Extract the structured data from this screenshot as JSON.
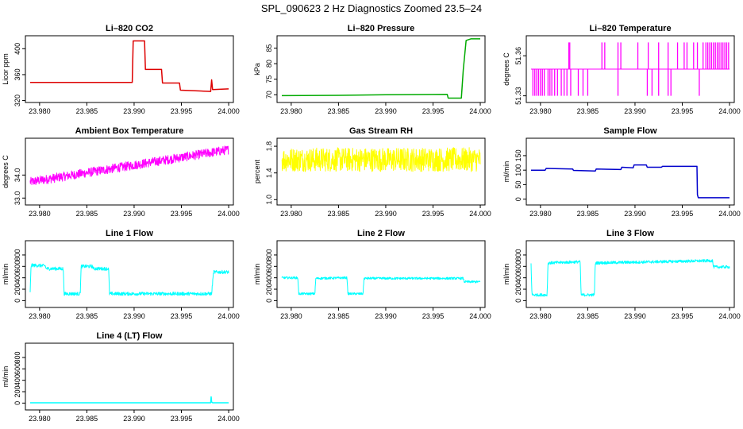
{
  "page": {
    "title": "SPL_090623  2 Hz Diagnostics Zoomed 23.5–24"
  },
  "x_axis": {
    "ticks": [
      23.98,
      23.985,
      23.99,
      23.995,
      24.0
    ],
    "tick_labels": [
      "23.980",
      "23.985",
      "23.990",
      "23.995",
      "24.000"
    ]
  },
  "chart_data": [
    {
      "id": "li820-co2",
      "type": "line",
      "title": "Li–820 CO2",
      "ylabel": "Licor ppm",
      "color": "#dd0000",
      "xlim": [
        23.9785,
        24.0005
      ],
      "ylim": [
        317,
        420
      ],
      "yticks": [
        320,
        360,
        400
      ],
      "ytick_labels": [
        "320",
        "360",
        "400"
      ],
      "series": [
        {
          "name": "CO2",
          "x": [
            23.979,
            23.9898,
            23.9899,
            23.9911,
            23.9912,
            23.9929,
            23.993,
            23.9948,
            23.9949,
            23.9981,
            23.9982,
            23.9983,
            24.0
          ],
          "y": [
            348,
            348,
            412,
            412,
            368,
            368,
            347,
            347,
            336,
            334,
            352,
            337,
            338
          ]
        }
      ]
    },
    {
      "id": "li820-pressure",
      "type": "line",
      "title": "Li–820 Pressure",
      "ylabel": "kPa",
      "color": "#00aa00",
      "xlim": [
        23.9785,
        24.0005
      ],
      "ylim": [
        67.5,
        89
      ],
      "yticks": [
        70,
        75,
        80,
        85
      ],
      "ytick_labels": [
        "70",
        "75",
        "80",
        "85"
      ],
      "series": [
        {
          "name": "Pressure",
          "x": [
            23.979,
            23.985,
            23.99,
            23.9965,
            23.9966,
            23.998,
            23.9982,
            23.9985,
            23.999,
            24.0
          ],
          "y": [
            69.7,
            69.8,
            70.0,
            70.1,
            68.9,
            68.9,
            78,
            87.5,
            88,
            88
          ]
        }
      ]
    },
    {
      "id": "li820-temperature",
      "type": "line",
      "title": "Li–820 Temperature",
      "ylabel": "degrees C",
      "color": "#ff00ff",
      "xlim": [
        23.9785,
        24.0005
      ],
      "ylim": [
        51.325,
        51.375
      ],
      "yticks": [
        51.33,
        51.36
      ],
      "ytick_labels": [
        "51.33",
        "51.36"
      ],
      "series": [
        {
          "name": "Temperature",
          "baseline": 51.35,
          "high": 51.37,
          "low": 51.33,
          "spikes_up": [
            23.983,
            23.9831,
            23.9865,
            23.9868,
            23.9882,
            23.9885,
            23.9903,
            23.9914,
            23.9925,
            23.9935,
            23.9945,
            23.9952,
            23.9955,
            23.9962,
            23.9966,
            23.9972,
            23.9975,
            23.9977,
            23.9979,
            23.9981,
            23.9983,
            23.9985,
            23.9987,
            23.9989,
            23.9991,
            23.9993,
            23.9995,
            23.9997,
            23.9999
          ],
          "spikes_down": [
            23.9792,
            23.9794,
            23.9796,
            23.9798,
            23.98,
            23.9802,
            23.9804,
            23.9808,
            23.981,
            23.9812,
            23.9815,
            23.9818,
            23.9822,
            23.9825,
            23.9828,
            23.9832,
            23.984,
            23.9845,
            23.985,
            23.9882,
            23.9913,
            23.9918,
            23.9925,
            23.9935,
            23.9938,
            23.9968
          ]
        }
      ]
    },
    {
      "id": "ambient-box-temperature",
      "type": "line",
      "title": "Ambient Box Temperature",
      "ylabel": "degrees C",
      "color": "#ff00ff",
      "xlim": [
        23.9785,
        24.0005
      ],
      "ylim": [
        32.7,
        35.6
      ],
      "yticks": [
        33.0,
        34.0
      ],
      "ytick_labels": [
        "33.0",
        "34.0"
      ],
      "series": [
        {
          "name": "Box temp",
          "x": [
            23.979,
            24.0
          ],
          "y": [
            33.7,
            35.1
          ],
          "noise": 0.2
        }
      ]
    },
    {
      "id": "gas-stream-rh",
      "type": "line",
      "title": "Gas Stream RH",
      "ylabel": "percent",
      "color": "#ffff00",
      "xlim": [
        23.9785,
        24.0005
      ],
      "ylim": [
        0.92,
        1.92
      ],
      "yticks": [
        1.0,
        1.4,
        1.8
      ],
      "ytick_labels": [
        "1.0",
        "1.4",
        "1.8"
      ],
      "series": [
        {
          "name": "RH",
          "x": [
            23.979,
            24.0
          ],
          "y": [
            1.6,
            1.6
          ],
          "noise": 0.18
        }
      ]
    },
    {
      "id": "sample-flow",
      "type": "line",
      "title": "Sample Flow",
      "ylabel": "ml/min",
      "color": "#0000cc",
      "xlim": [
        23.9785,
        24.0005
      ],
      "ylim": [
        -20,
        210
      ],
      "yticks": [
        0,
        50,
        100,
        150
      ],
      "ytick_labels": [
        "0",
        "50",
        "100",
        "150"
      ],
      "series": [
        {
          "name": "Sample flow",
          "x": [
            23.979,
            23.9805,
            23.9806,
            23.9834,
            23.9835,
            23.9858,
            23.9859,
            23.9885,
            23.9886,
            23.9898,
            23.9899,
            23.9912,
            23.9913,
            23.9928,
            23.9929,
            23.99655,
            23.9966,
            23.9967,
            24.0
          ],
          "y": [
            100,
            100,
            106,
            104,
            99,
            97,
            104,
            102,
            110,
            108,
            118,
            118,
            110,
            110,
            113,
            113,
            15,
            5,
            5
          ]
        }
      ]
    },
    {
      "id": "line-1-flow",
      "type": "line",
      "title": "Line 1 Flow",
      "ylabel": "ml/min",
      "color": "#00ffff",
      "xlim": [
        23.9785,
        24.0005
      ],
      "ylim": [
        -120,
        1050
      ],
      "yticks": [
        0,
        200,
        400,
        600,
        800
      ],
      "ytick_labels": [
        "0",
        "200",
        "400",
        "600",
        "800"
      ],
      "series": [
        {
          "name": "Line 1",
          "x": [
            23.979,
            23.9791,
            23.9806,
            23.9807,
            23.9825,
            23.9826,
            23.9843,
            23.9844,
            23.9856,
            23.9857,
            23.9873,
            23.9874,
            23.9982,
            23.9984,
            24.0
          ],
          "y": [
            130,
            620,
            610,
            560,
            560,
            120,
            120,
            600,
            600,
            560,
            560,
            120,
            120,
            500,
            500
          ],
          "noise": 30
        }
      ]
    },
    {
      "id": "line-2-flow",
      "type": "line",
      "title": "Line 2 Flow",
      "ylabel": "ml/min",
      "color": "#00ffff",
      "xlim": [
        23.9785,
        24.0005
      ],
      "ylim": [
        -120,
        1050
      ],
      "yticks": [
        0,
        200,
        400,
        600,
        800
      ],
      "ytick_labels": [
        "0",
        "200",
        "400",
        "600",
        "800"
      ],
      "series": [
        {
          "name": "Line 2",
          "x": [
            23.979,
            23.9807,
            23.9808,
            23.9825,
            23.9826,
            23.9859,
            23.986,
            23.9876,
            23.9877,
            23.9982,
            23.9983,
            24.0
          ],
          "y": [
            400,
            400,
            120,
            120,
            390,
            400,
            120,
            120,
            390,
            390,
            330,
            330
          ],
          "noise": 20
        }
      ]
    },
    {
      "id": "line-3-flow",
      "type": "line",
      "title": "Line 3 Flow",
      "ylabel": "ml/min",
      "color": "#00ffff",
      "xlim": [
        23.9785,
        24.0005
      ],
      "ylim": [
        -120,
        1050
      ],
      "yticks": [
        0,
        200,
        400,
        600,
        800
      ],
      "ytick_labels": [
        "0",
        "200",
        "400",
        "600",
        "800"
      ],
      "series": [
        {
          "name": "Line 3",
          "x": [
            23.979,
            23.9791,
            23.9792,
            23.9807,
            23.9808,
            23.9842,
            23.9843,
            23.9857,
            23.9858,
            23.9982,
            23.9983,
            24.0
          ],
          "y": [
            650,
            110,
            100,
            100,
            660,
            680,
            100,
            100,
            660,
            700,
            590,
            590
          ],
          "noise": 25
        }
      ]
    },
    {
      "id": "line-4-lt-flow",
      "type": "line",
      "title": "Line 4 (LT) Flow",
      "ylabel": "ml/min",
      "color": "#00ffff",
      "xlim": [
        23.9785,
        24.0005
      ],
      "ylim": [
        -120,
        1050
      ],
      "yticks": [
        0,
        200,
        400,
        600,
        800
      ],
      "ytick_labels": [
        "0",
        "200",
        "400",
        "600",
        "800"
      ],
      "series": [
        {
          "name": "Line 4",
          "x": [
            23.979,
            23.9981,
            23.99815,
            23.9982,
            23.9983,
            24.0
          ],
          "y": [
            5,
            5,
            110,
            20,
            5,
            5
          ]
        }
      ]
    }
  ]
}
